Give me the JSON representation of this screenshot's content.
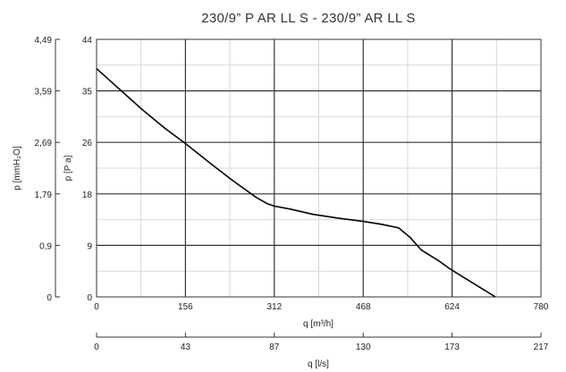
{
  "chart_data": {
    "type": "line",
    "title": "230/9” P AR LL S - 230/9” AR LL S",
    "xlabel": "q [m³/h]",
    "x2label": "q [l/s]",
    "ylabel": "p [P a]",
    "y2label": "p [mmH₂O]",
    "xlim": [
      0,
      780
    ],
    "ylim": [
      0,
      44
    ],
    "x_ticks": [
      "0",
      "156",
      "312",
      "468",
      "624",
      "780"
    ],
    "x2_ticks": [
      "0",
      "43",
      "87",
      "130",
      "173",
      "217"
    ],
    "y_ticks": [
      "0",
      "9",
      "18",
      "26",
      "35",
      "44"
    ],
    "y2_ticks": [
      "0",
      "0,9",
      "1,79",
      "2,69",
      "3,59",
      "4,49"
    ],
    "grid": true,
    "series": [
      {
        "x": [
          0,
          40,
          80,
          120,
          156,
          200,
          240,
          280,
          300,
          312,
          340,
          380,
          420,
          468,
          500,
          530,
          550,
          570,
          600,
          620,
          660,
          700
        ],
        "y": [
          39.0,
          35.5,
          32.0,
          28.8,
          26.2,
          22.8,
          19.8,
          17.0,
          15.9,
          15.5,
          15.0,
          14.1,
          13.5,
          12.9,
          12.4,
          11.8,
          10.2,
          8.0,
          6.2,
          4.8,
          2.4,
          0.0
        ]
      }
    ],
    "colors": {
      "line": "#000000",
      "grid_major": "#333333",
      "grid_minor": "#d8d8d8",
      "frame": "#333333"
    }
  }
}
